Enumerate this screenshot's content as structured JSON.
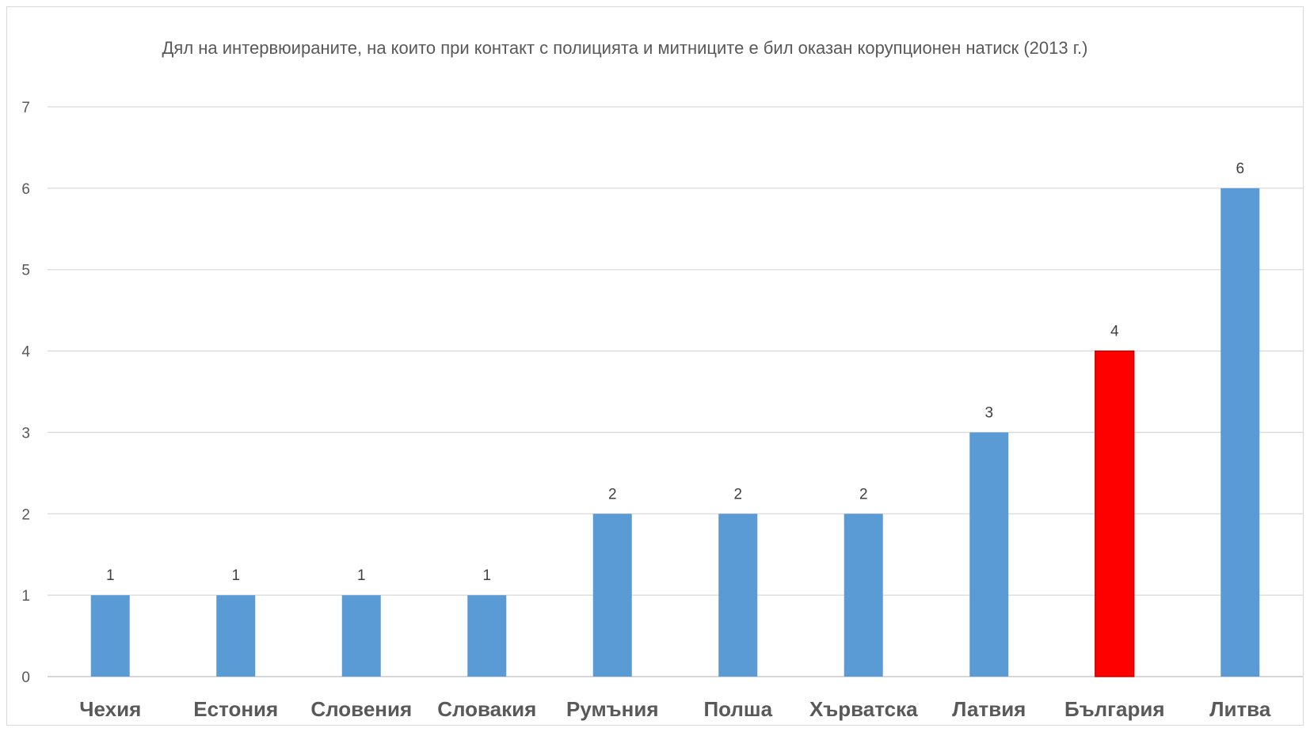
{
  "chart_data": {
    "type": "bar",
    "title": "Дял на интервюираните, на които при контакт с полицията и митниците е бил оказан корупционен натиск (2013 г.)",
    "categories": [
      "Чехия",
      "Естония",
      "Словения",
      "Словакия",
      "Румъния",
      "Полша",
      "Хърватска",
      "Латвия",
      "България",
      "Литва"
    ],
    "values": [
      1,
      1,
      1,
      1,
      2,
      2,
      2,
      3,
      4,
      6
    ],
    "data_labels": [
      "1",
      "1",
      "1",
      "1",
      "2",
      "2",
      "2",
      "3",
      "4",
      "6"
    ],
    "y_ticks": [
      "0",
      "1",
      "2",
      "3",
      "4",
      "5",
      "6",
      "7"
    ],
    "ylim": [
      0,
      7
    ],
    "grid": true,
    "legend": "none",
    "colors": {
      "default": "#5b9bd5",
      "highlight": "#ff0000",
      "highlight_border": "#c00000"
    },
    "highlight_category": "България"
  }
}
